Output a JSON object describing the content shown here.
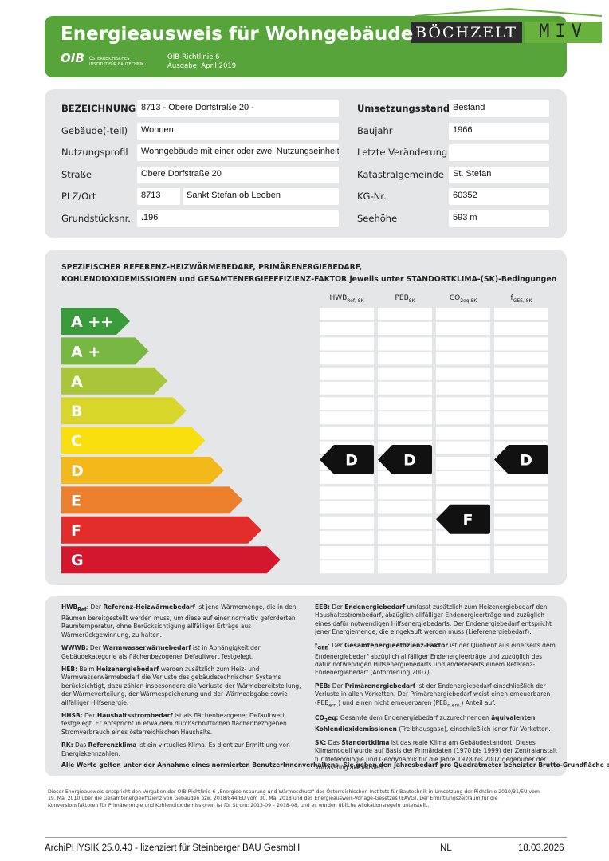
{
  "header": {
    "title": "Energieausweis für Wohngebäude",
    "logo": "OIB",
    "logo_text": [
      "ÖSTERREICHISCHES",
      "INSTITUT FÜR BAUTECHNIK"
    ],
    "guideline": "OIB-Richtlinie 6",
    "edition": "Ausgabe: April 2019",
    "brand": "BÖCHZELT",
    "brand2": "MIV"
  },
  "property": {
    "left": [
      {
        "label": "BEZEICHNUNG",
        "bold": true,
        "values": [
          "8713 - Obere Dorfstraße 20 -"
        ]
      },
      {
        "label": "Gebäude(-teil)",
        "values": [
          "Wohnen"
        ]
      },
      {
        "label": "Nutzungsprofil",
        "values": [
          "Wohngebäude mit einer oder zwei Nutzungseinheiten"
        ]
      },
      {
        "label": "Straße",
        "values": [
          "Obere Dorfstraße 20"
        ]
      },
      {
        "label": "PLZ/Ort",
        "values": [
          "8713",
          "Sankt Stefan ob Leoben"
        ]
      },
      {
        "label": "Grundstücksnr.",
        "values": [
          ".196"
        ]
      }
    ],
    "right": [
      {
        "label": "Umsetzungsstand",
        "bold": true,
        "values": [
          "Bestand"
        ]
      },
      {
        "label": "Baujahr",
        "values": [
          "1966"
        ]
      },
      {
        "label": "Letzte Veränderung",
        "values": []
      },
      {
        "label": "Katastralgemeinde",
        "values": [
          "St. Stefan"
        ]
      },
      {
        "label": "KG-Nr.",
        "values": [
          "60352"
        ]
      },
      {
        "label": "Seehöhe",
        "values": [
          "593 m"
        ]
      }
    ]
  },
  "rating": {
    "heading": [
      "SPEZIFISCHER REFERENZ-HEIZWÄRMEBEDARF, PRIMÄRENERGIEBEDARF,",
      "KOHLENDIOXIDEMISSIONEN und GESAMTENERGIEEFFIZIENZ-FAKTOR jeweils unter STANDORTKLIMA-(SK)-Bedingungen"
    ],
    "classes": [
      {
        "label": "A ++",
        "color": "#3a9a3c"
      },
      {
        "label": "A +",
        "color": "#79b743"
      },
      {
        "label": "A",
        "color": "#a9c53a"
      },
      {
        "label": "B",
        "color": "#d8d62a"
      },
      {
        "label": "C",
        "color": "#f9df0e"
      },
      {
        "label": "D",
        "color": "#f3b81a"
      },
      {
        "label": "E",
        "color": "#ec7f2b"
      },
      {
        "label": "F",
        "color": "#e22d2b"
      },
      {
        "label": "G",
        "color": "#d5172e"
      }
    ],
    "columns": [
      {
        "name": "HWB",
        "sub": "Ref, SK",
        "result": "D"
      },
      {
        "name": "PEB",
        "sub": "SK",
        "result": "D"
      },
      {
        "name": "CO",
        "sub": "2eq,SK",
        "result": "F"
      },
      {
        "name": "f",
        "sub": "GEE, SK",
        "result": "D"
      }
    ]
  },
  "definitions": {
    "left": [
      [
        {
          "text": "HWB",
          "b": true
        },
        {
          "text": "Ref",
          "b": true,
          "sub": true
        },
        {
          "text": ": Der "
        },
        {
          "text": "Referenz-Heizwärmebedarf",
          "b": true
        },
        {
          "text": " ist jene Wärmemenge, die in den Räumen bereitgestellt werden muss, um diese auf einer normativ geforderten Raumtemperatur, ohne Berücksichtigung allfälliger Erträge aus Wärmerückgewinnung, zu halten."
        }
      ],
      [
        {
          "text": "WWWB:",
          "b": true
        },
        {
          "text": " Der "
        },
        {
          "text": "Warmwasserwärmebedarf",
          "b": true
        },
        {
          "text": " ist in Abhängigkeit der Gebäudekategorie als flächenbezogener Defaultwert festgelegt."
        }
      ],
      [
        {
          "text": "HEB:",
          "b": true
        },
        {
          "text": " Beim "
        },
        {
          "text": "Heizenergiebedarf",
          "b": true
        },
        {
          "text": " werden zusätzlich zum Heiz- und Warmwasserwärmebedarf die Verluste des gebäudetechnischen Systems berücksichtigt, dazu zählen insbesondere die Verluste der Wärmebereitstellung, der Wärmeverteilung, der Wärmespeicherung und der Wärmeabgabe sowie allfälliger Hilfsenergie."
        }
      ],
      [
        {
          "text": "HHSB:",
          "b": true
        },
        {
          "text": " Der "
        },
        {
          "text": "Haushaltsstrombedarf",
          "b": true
        },
        {
          "text": " ist als flächenbezogener Defaultwert festgelegt. Er entspricht in etwa dem durchschnittlichen flächenbezogenen Stromverbrauch eines österreichischen Haushalts."
        }
      ],
      [
        {
          "text": "RK:",
          "b": true
        },
        {
          "text": " Das "
        },
        {
          "text": "Referenzklima",
          "b": true
        },
        {
          "text": " ist ein virtuelles Klima. Es dient zur Ermittlung von Energiekennzahlen."
        }
      ]
    ],
    "right": [
      [
        {
          "text": "EEB:",
          "b": true
        },
        {
          "text": " Der "
        },
        {
          "text": "Endenergiebedarf",
          "b": true
        },
        {
          "text": " umfasst zusätzlich zum Heizenergiebedarf den Haushaltsstrombedarf, abzüglich allfälliger Endenergieerträge und zuzüglich eines dafür notwendigen Hilfsenergiebedarfs. Der Endenergiebedarf entspricht jener Energiemenge, die eingekauft werden muss (Lieferenergiebedarf)."
        }
      ],
      [
        {
          "text": "f",
          "b": true
        },
        {
          "text": "GEE",
          "b": true,
          "sub": true
        },
        {
          "text": ": Der "
        },
        {
          "text": "Gesamtenergieeffizienz-Faktor",
          "b": true
        },
        {
          "text": " ist der Quotient aus einerseits dem Endenergiebedarf abzüglich allfälliger Endenergieerträge und zuzüglich des dafür notwendigen Hilfsenergiebedarfs und andererseits einem Referenz-Endenergiebedarf (Anforderung 2007)."
        }
      ],
      [
        {
          "text": "PEB:",
          "b": true
        },
        {
          "text": " Der "
        },
        {
          "text": "Primärenergiebedarf",
          "b": true
        },
        {
          "text": " ist der Endenergiebedarf einschließlich der Verluste in allen Vorketten. Der Primärenergiebedarf weist einen erneuerbaren (PEB"
        },
        {
          "text": "ern.",
          "sub": true
        },
        {
          "text": ") und einen nicht erneuerbaren (PEB"
        },
        {
          "text": "n.ern.",
          "sub": true
        },
        {
          "text": ") Anteil auf."
        }
      ],
      [
        {
          "text": "CO",
          "b": true
        },
        {
          "text": "2",
          "b": true,
          "sub": true
        },
        {
          "text": "eq:",
          "b": true
        },
        {
          "text": " Gesamte dem Endenergiebedarf zuzurechnenden "
        },
        {
          "text": "äquivalenten Kohlendioxidemissionen",
          "b": true
        },
        {
          "text": " (Treibhausgase), einschließlich jener für Vorketten."
        }
      ],
      [
        {
          "text": "SK:",
          "b": true
        },
        {
          "text": " Das "
        },
        {
          "text": "Standortklima",
          "b": true
        },
        {
          "text": " ist das reale Klima am Gebäudestandort. Dieses Klimamodell wurde auf Basis der Primärdaten (1970 bis 1999) der Zentralanstalt für Meteorologie und Geodynamik für die Jahre 1978 bis 2007 gegenüber der Vorfassung aktualisiert."
        }
      ]
    ],
    "note": "Alle Werte gelten unter der Annahme eines normierten BenutzerInnenverhaltens. Sie geben den Jahresbedarf pro Quadratmeter beheizter Brutto-Grundfläche an."
  },
  "footer": {
    "disclaimer": "Dieser Energieausweis entspricht den Vorgaben der OIB-Richtlinie 6 „Energieeinsparung und Wärmeschutz“ des Österreichischen Instituts für Bautechnik in Umsetzung der Richtlinie 2010/31/EU vom 19. Mai 2010 über die Gesamtenergieeffizienz von Gebäuden bzw. 2018/844/EU vom 30. Mai 2018 und des Energieausweis-Vorlage-Gesetzes (EAVG). Der Ermittlungszeitraum für die Konversionsfaktoren für Primärenergie und Kohlendioxidemissionen ist für Strom: 2013-09 – 2018-08, und es wurden übliche Allokationsregeln unterstellt.",
    "software": "ArchiPHYSIK 25.0.40 - lizenziert für Steinberger BAU GesmbH",
    "code": "NL",
    "date": "18.03.2026"
  }
}
